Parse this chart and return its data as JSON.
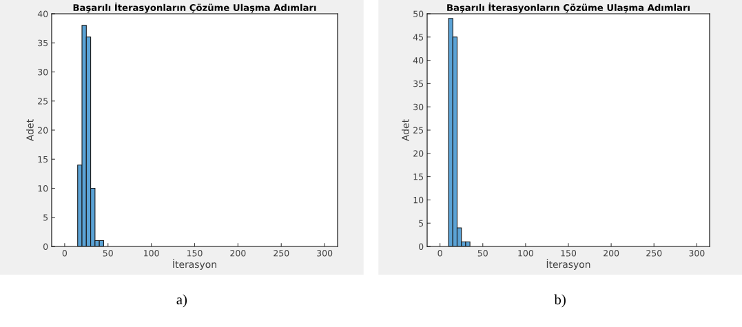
{
  "chart_data": [
    {
      "type": "histogram",
      "title": "Başarılı İterasyonların Çözüme Ulaşma Adımları",
      "xlabel": "İterasyon",
      "ylabel": "Adet",
      "bins": [
        15,
        20,
        25,
        30,
        35,
        40,
        45
      ],
      "values": [
        14,
        38,
        36,
        10,
        1,
        1
      ],
      "color": "#5ba3d6",
      "xlim": [
        -15,
        315
      ],
      "xticks": [
        0,
        50,
        100,
        150,
        200,
        250,
        300
      ],
      "ylim": [
        0,
        40
      ],
      "yticks": [
        0,
        5,
        10,
        15,
        20,
        25,
        30,
        35,
        40
      ],
      "annotations": [
        "a)"
      ]
    },
    {
      "type": "histogram",
      "title": "Başarılı İterasyonların Çözüme Ulaşma Adımları",
      "xlabel": "İterasyon",
      "ylabel": "Adet",
      "bins": [
        10,
        15,
        20,
        25,
        30,
        35
      ],
      "values": [
        49,
        45,
        4,
        1,
        1
      ],
      "color": "#5ba3d6",
      "xlim": [
        -15,
        315
      ],
      "xticks": [
        0,
        50,
        100,
        150,
        200,
        250,
        300
      ],
      "ylim": [
        0,
        50
      ],
      "yticks": [
        0,
        5,
        10,
        15,
        20,
        25,
        30,
        35,
        40,
        45,
        50
      ],
      "annotations": [
        "b)"
      ]
    }
  ]
}
